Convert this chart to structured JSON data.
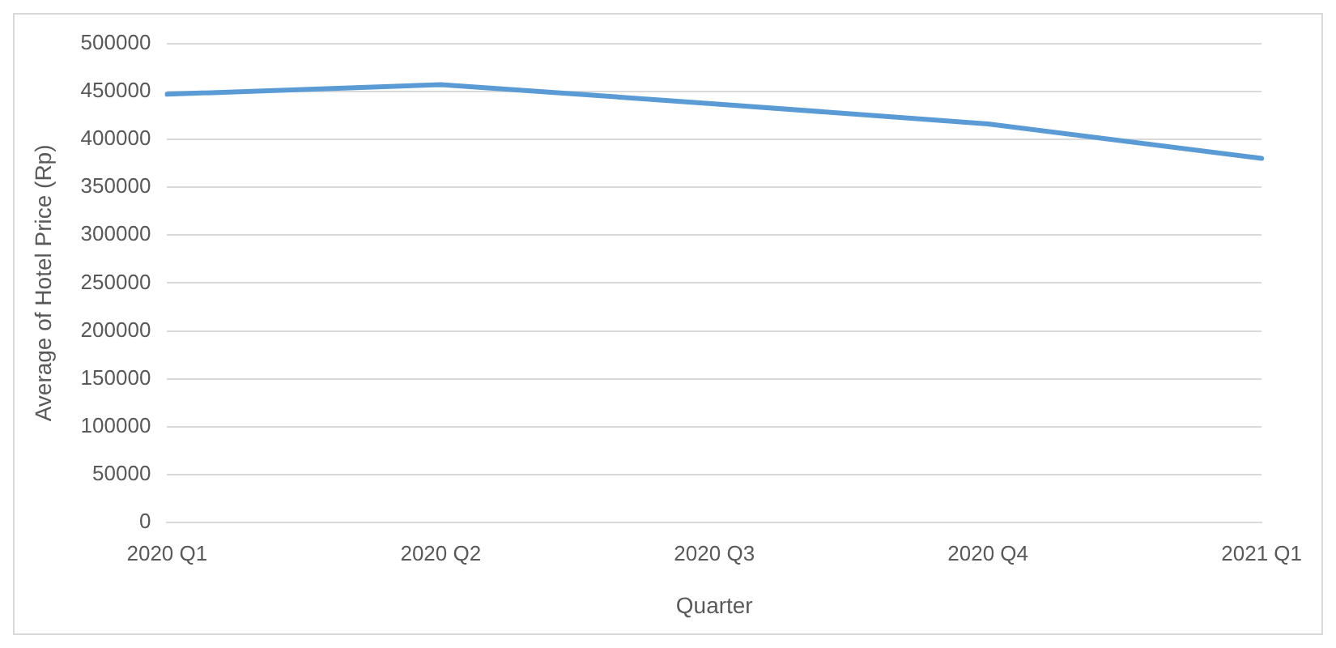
{
  "chart_data": {
    "type": "line",
    "xlabel": "Quarter",
    "ylabel": "Average of Hotel Price (Rp)",
    "categories": [
      "2020 Q1",
      "2020 Q2",
      "2020 Q3",
      "2020 Q4",
      "2021 Q1"
    ],
    "series": [
      {
        "color": "#5b9bd5",
        "values": [
          447000,
          457000,
          437000,
          416000,
          380000
        ]
      }
    ],
    "ylim": [
      0,
      500000
    ],
    "yticks": [
      0,
      50000,
      100000,
      150000,
      200000,
      250000,
      300000,
      350000,
      400000,
      450000,
      500000
    ],
    "grid": "y",
    "legend": false,
    "marker": "none",
    "line_style": "solid"
  }
}
